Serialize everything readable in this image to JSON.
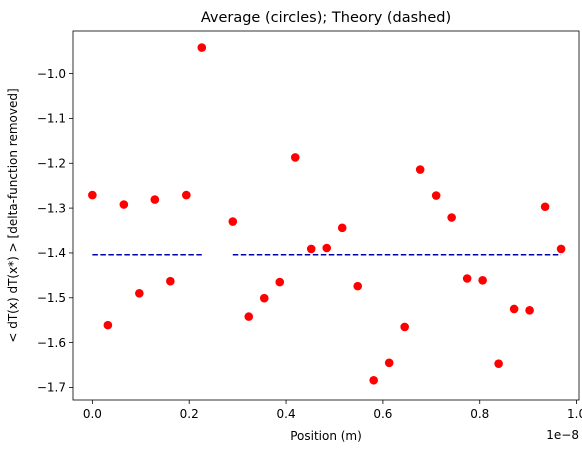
{
  "chart_data": {
    "type": "scatter",
    "title": "Average (circles); Theory (dashed)",
    "xlabel": "Position (m)",
    "ylabel": "< dT(x) dT(x*) > [delta-function removed]",
    "x_offset_label": "1e−8",
    "xlim": [
      -0.04,
      1.005
    ],
    "ylim": [
      -1.728,
      -0.905
    ],
    "xticks": [
      0.0,
      0.2,
      0.4,
      0.6,
      0.8,
      1.0
    ],
    "xtick_labels": [
      "0.0",
      "0.2",
      "0.4",
      "0.6",
      "0.8",
      "1.0"
    ],
    "yticks": [
      -1.7,
      -1.6,
      -1.5,
      -1.4,
      -1.3,
      -1.2,
      -1.1,
      -1.0
    ],
    "ytick_labels": [
      "−1.7",
      "−1.6",
      "−1.5",
      "−1.4",
      "−1.3",
      "−1.2",
      "−1.1",
      "−1.0"
    ],
    "grid": false,
    "series": [
      {
        "kind": "scatter",
        "color": "#ff0000",
        "marker": "circle",
        "points": [
          {
            "x": 0.0,
            "y": -1.271
          },
          {
            "x": 0.032,
            "y": -1.561
          },
          {
            "x": 0.065,
            "y": -1.292
          },
          {
            "x": 0.097,
            "y": -1.49
          },
          {
            "x": 0.129,
            "y": -1.281
          },
          {
            "x": 0.161,
            "y": -1.463
          },
          {
            "x": 0.194,
            "y": -1.271
          },
          {
            "x": 0.226,
            "y": -0.942
          },
          {
            "x": 0.29,
            "y": -1.33
          },
          {
            "x": 0.323,
            "y": -1.542
          },
          {
            "x": 0.355,
            "y": -1.501
          },
          {
            "x": 0.387,
            "y": -1.465
          },
          {
            "x": 0.419,
            "y": -1.187
          },
          {
            "x": 0.452,
            "y": -1.391
          },
          {
            "x": 0.484,
            "y": -1.389
          },
          {
            "x": 0.516,
            "y": -1.344
          },
          {
            "x": 0.548,
            "y": -1.474
          },
          {
            "x": 0.581,
            "y": -1.684
          },
          {
            "x": 0.613,
            "y": -1.645
          },
          {
            "x": 0.645,
            "y": -1.565
          },
          {
            "x": 0.677,
            "y": -1.214
          },
          {
            "x": 0.71,
            "y": -1.272
          },
          {
            "x": 0.742,
            "y": -1.321
          },
          {
            "x": 0.774,
            "y": -1.457
          },
          {
            "x": 0.806,
            "y": -1.461
          },
          {
            "x": 0.839,
            "y": -1.647
          },
          {
            "x": 0.871,
            "y": -1.525
          },
          {
            "x": 0.903,
            "y": -1.528
          },
          {
            "x": 0.935,
            "y": -1.297
          },
          {
            "x": 0.968,
            "y": -1.391
          }
        ]
      },
      {
        "kind": "dashed-line",
        "color": "#0000aa",
        "segments": [
          {
            "x": [
              0.0,
              0.226
            ],
            "y": [
              -1.404,
              -1.404
            ]
          },
          {
            "x": [
              0.29,
              0.968
            ],
            "y": [
              -1.404,
              -1.404
            ]
          }
        ]
      }
    ]
  }
}
